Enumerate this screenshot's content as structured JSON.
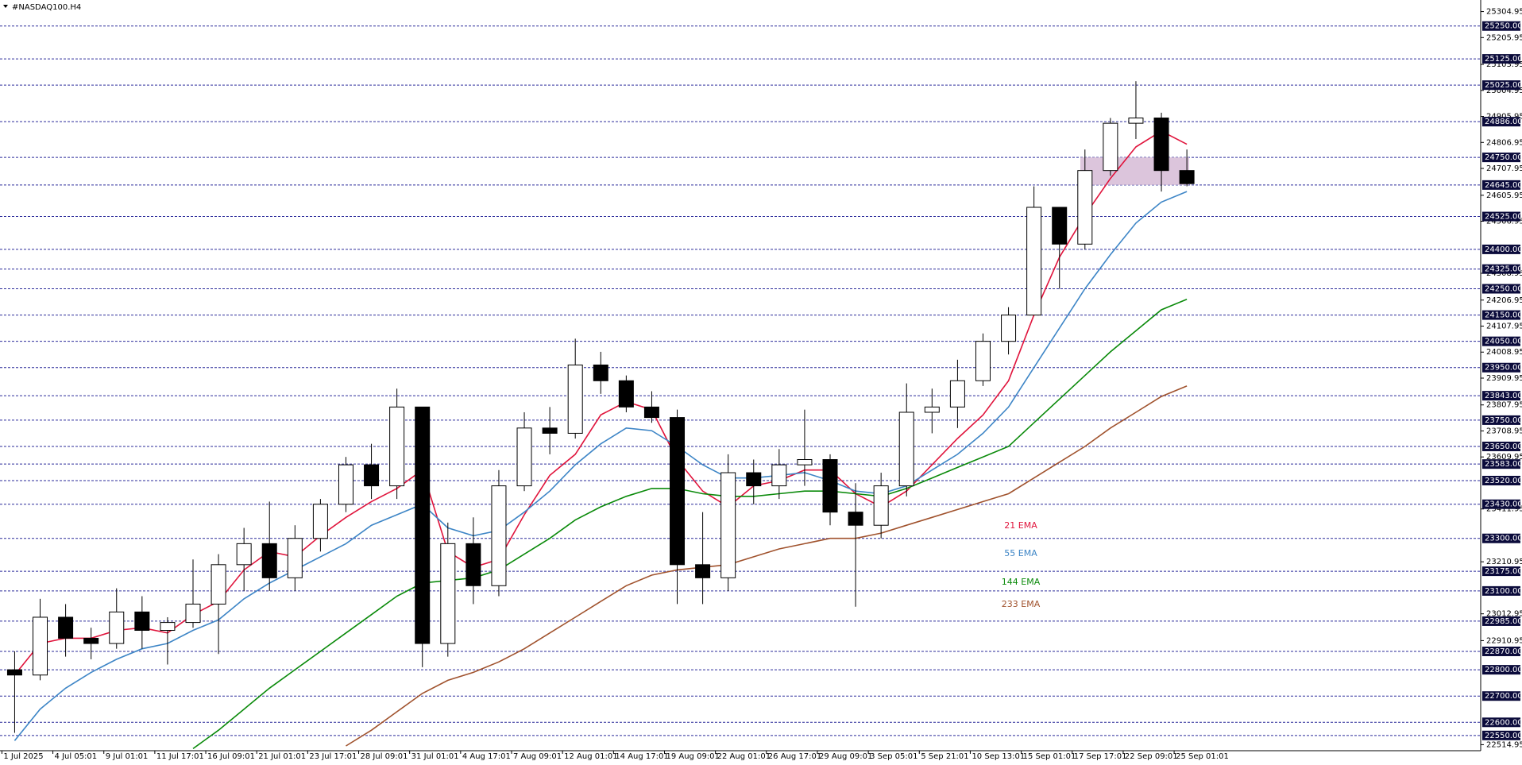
{
  "chart_data": {
    "type": "candlestick",
    "title": "#NASDAQ100.H4",
    "categories": [
      "1 Jul 2025",
      null,
      "4 Jul 05:01",
      null,
      "9 Jul 01:01",
      null,
      "11 Jul 17:01",
      null,
      "16 Jul 09:01",
      null,
      "21 Jul 01:01",
      null,
      "23 Jul 17:01",
      null,
      "28 Jul 09:01",
      null,
      "31 Jul 01:01",
      null,
      "4 Aug 17:01",
      null,
      "7 Aug 09:01",
      null,
      "12 Aug 01:01",
      null,
      "14 Aug 17:01",
      null,
      "19 Aug 09:01",
      null,
      "22 Aug 01:01",
      null,
      "26 Aug 17:01",
      null,
      "29 Aug 09:01",
      null,
      "3 Sep 05:01",
      null,
      "5 Sep 21:01",
      null,
      "10 Sep 13:01",
      null,
      "15 Sep 01:01",
      null,
      "17 Sep 17:01",
      null,
      "22 Sep 09:01",
      null,
      "25 Sep 01:01"
    ],
    "open": [
      22800,
      22780,
      23000,
      22920,
      22900,
      23020,
      22950,
      22980,
      23050,
      23200,
      23280,
      23150,
      23300,
      23430,
      23580,
      23500,
      23800,
      22900,
      23280,
      23120,
      23500,
      23720,
      23700,
      23960,
      23900,
      23800,
      23760,
      23200,
      23150,
      23550,
      23500,
      23580,
      23600,
      23400,
      23350,
      23500,
      23780,
      23800,
      23900,
      24050,
      24150,
      24560,
      24420,
      24700,
      24880,
      24900,
      24700
    ],
    "high": [
      22870,
      23070,
      23050,
      22960,
      23110,
      23080,
      23000,
      23220,
      23240,
      23340,
      23440,
      23350,
      23450,
      23610,
      23660,
      23870,
      23800,
      23360,
      23380,
      23560,
      23780,
      23800,
      24060,
      24010,
      23920,
      23860,
      23790,
      23400,
      23620,
      23600,
      23640,
      23790,
      23620,
      23510,
      23550,
      23890,
      23870,
      23980,
      24080,
      24180,
      24640,
      24560,
      24780,
      24900,
      25040,
      24920,
      24780
    ],
    "low": [
      22560,
      22760,
      22850,
      22840,
      22880,
      22880,
      22820,
      22960,
      22860,
      23100,
      23100,
      23100,
      23250,
      23400,
      23450,
      23450,
      22810,
      22850,
      23050,
      23080,
      23480,
      23620,
      23680,
      23850,
      23780,
      23740,
      23050,
      23050,
      23100,
      23430,
      23450,
      23500,
      23350,
      23040,
      23300,
      23460,
      23700,
      23720,
      23880,
      24000,
      24150,
      24250,
      24400,
      24680,
      24820,
      24620,
      24640
    ],
    "close": [
      22780,
      23000,
      22920,
      22900,
      23020,
      22950,
      22980,
      23050,
      23200,
      23280,
      23150,
      23300,
      23430,
      23580,
      23500,
      23800,
      22900,
      23280,
      23120,
      23500,
      23720,
      23700,
      23960,
      23900,
      23800,
      23760,
      23200,
      23150,
      23550,
      23500,
      23580,
      23600,
      23400,
      23350,
      23500,
      23780,
      23800,
      23900,
      24050,
      24150,
      24560,
      24420,
      24700,
      24880,
      24900,
      24700,
      24650
    ],
    "up_color": "#ffffff",
    "down_color": "#000000",
    "series": [
      {
        "name": "21 EMA",
        "color": "#e0143c",
        "values": [
          22780,
          22900,
          22920,
          22920,
          22950,
          22960,
          22940,
          23010,
          23060,
          23180,
          23250,
          23230,
          23310,
          23380,
          23440,
          23490,
          23560,
          23250,
          23190,
          23220,
          23390,
          23540,
          23620,
          23770,
          23820,
          23790,
          23600,
          23480,
          23420,
          23500,
          23520,
          23560,
          23560,
          23470,
          23420,
          23480,
          23580,
          23680,
          23770,
          23900,
          24150,
          24370,
          24530,
          24670,
          24790,
          24850,
          24800
        ]
      },
      {
        "name": "55 EMA",
        "color": "#3d85c6",
        "values": [
          22530,
          22650,
          22730,
          22790,
          22840,
          22880,
          22900,
          22950,
          22990,
          23070,
          23130,
          23180,
          23230,
          23280,
          23350,
          23390,
          23430,
          23340,
          23310,
          23330,
          23400,
          23480,
          23580,
          23660,
          23720,
          23710,
          23650,
          23580,
          23530,
          23530,
          23540,
          23550,
          23520,
          23480,
          23470,
          23500,
          23560,
          23620,
          23700,
          23800,
          23950,
          24100,
          24250,
          24380,
          24500,
          24580,
          24620
        ]
      },
      {
        "name": "144 EMA",
        "color": "#0a8a0a",
        "values": [
          null,
          null,
          null,
          null,
          null,
          null,
          null,
          22500,
          22570,
          22650,
          22730,
          22800,
          22870,
          22940,
          23010,
          23080,
          23130,
          23140,
          23150,
          23180,
          23240,
          23300,
          23370,
          23420,
          23460,
          23490,
          23490,
          23470,
          23460,
          23460,
          23470,
          23480,
          23480,
          23470,
          23460,
          23490,
          23530,
          23570,
          23610,
          23650,
          23740,
          23830,
          23920,
          24010,
          24090,
          24170,
          24210
        ]
      },
      {
        "name": "233 EMA",
        "color": "#a0522d",
        "values": [
          null,
          null,
          null,
          null,
          null,
          null,
          null,
          null,
          null,
          null,
          null,
          null,
          null,
          22510,
          22570,
          22640,
          22710,
          22760,
          22790,
          22830,
          22880,
          22940,
          23000,
          23060,
          23120,
          23160,
          23180,
          23190,
          23200,
          23230,
          23260,
          23280,
          23300,
          23300,
          23320,
          23350,
          23380,
          23410,
          23440,
          23470,
          23530,
          23590,
          23650,
          23720,
          23780,
          23840,
          23880
        ]
      }
    ],
    "zone": [
      24645,
      24750
    ],
    "zone_color": "#d8bfd8",
    "ylim": [
      22492,
      25349
    ],
    "yticks": [
      25304.95,
      25205.95,
      25103.95,
      25004.95,
      24905.95,
      24806.95,
      24707.95,
      24605.95,
      24506.95,
      24308.95,
      24206.95,
      24107.95,
      24008.95,
      23909.95,
      23807.95,
      23708.95,
      23609.95,
      23411.95,
      23210.95,
      23012.95,
      22910.95,
      22514.95
    ],
    "levels": [
      {
        "value": 25250,
        "label": "25250.00"
      },
      {
        "value": 25125,
        "label": "25125.00"
      },
      {
        "value": 25025,
        "label": "25025.00"
      },
      {
        "value": 24886,
        "label": "24886.00"
      },
      {
        "value": 24750,
        "label": "24750.00"
      },
      {
        "value": 24645,
        "label": "24645.00"
      },
      {
        "value": 24525,
        "label": "24525.00"
      },
      {
        "value": 24400,
        "label": "24400.00"
      },
      {
        "value": 24325,
        "label": "24325.00"
      },
      {
        "value": 24250,
        "label": "24250.00"
      },
      {
        "value": 24150,
        "label": "24150.00"
      },
      {
        "value": 24050,
        "label": "24050.00"
      },
      {
        "value": 23950,
        "label": "23950.00"
      },
      {
        "value": 23843,
        "label": "23843.00"
      },
      {
        "value": 23750,
        "label": "23750.00"
      },
      {
        "value": 23650,
        "label": "23650.00"
      },
      {
        "value": 23583,
        "label": "23583.00"
      },
      {
        "value": 23520,
        "label": "23520.00"
      },
      {
        "value": 23430,
        "label": "23430.00"
      },
      {
        "value": 23300,
        "label": "23300.00"
      },
      {
        "value": 23175,
        "label": "23175.00"
      },
      {
        "value": 23100,
        "label": "23100.00"
      },
      {
        "value": 22985,
        "label": "22985.00"
      },
      {
        "value": 22870,
        "label": "22870.00"
      },
      {
        "value": 22800,
        "label": "22800.00"
      },
      {
        "value": 22700,
        "label": "22700.00"
      },
      {
        "value": 22600,
        "label": "22600.00"
      },
      {
        "value": 22550,
        "label": "22550.00"
      }
    ],
    "level_color": "#2b2b9a",
    "grid": false
  }
}
